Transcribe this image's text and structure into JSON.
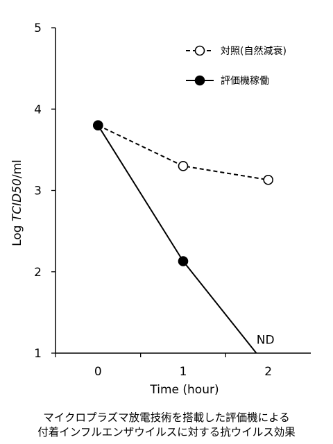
{
  "chart_data": {
    "type": "line",
    "title": "",
    "xlabel": "Time (hour)",
    "ylabel_prefix": "Log ",
    "ylabel_italic": "TCID50",
    "ylabel_suffix": "/ml",
    "x_ticks": [
      "0",
      "1",
      "2"
    ],
    "y_ticks": [
      "1",
      "2",
      "3",
      "4",
      "5"
    ],
    "xlim": [
      -0.5,
      2.5
    ],
    "ylim": [
      1,
      5
    ],
    "grid": false,
    "legend_position": "top-right",
    "series": [
      {
        "name": "対照(自然減衰)",
        "style": "dashed",
        "marker": "open-circle",
        "x": [
          0,
          1,
          2
        ],
        "y": [
          3.8,
          3.3,
          3.13
        ]
      },
      {
        "name": "評価機稼働",
        "style": "solid",
        "marker": "filled-circle",
        "x": [
          0,
          1
        ],
        "y": [
          3.8,
          2.13
        ],
        "extension_to": [
          1.86,
          1.0
        ]
      }
    ],
    "annotations": [
      {
        "text": "ND",
        "x": 2.0,
        "y": 1.1
      }
    ]
  },
  "caption": {
    "line1": "マイクロプラズマ放電技術を搭載した評価機による",
    "line2": "付着インフルエンザウイルスに対する抗ウイルス効果"
  },
  "colors": {
    "line": "#000000",
    "background": "#ffffff"
  }
}
